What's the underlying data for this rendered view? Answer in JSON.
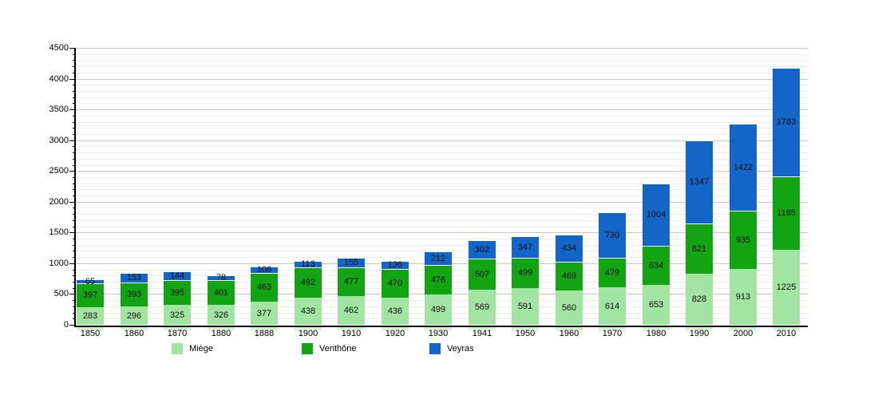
{
  "chart_data": {
    "type": "bar",
    "stacked": true,
    "title": "",
    "xlabel": "",
    "ylabel": "",
    "categories": [
      "1850",
      "1860",
      "1870",
      "1880",
      "1888",
      "1900",
      "1910",
      "1920",
      "1930",
      "1941",
      "1950",
      "1960",
      "1970",
      "1980",
      "1990",
      "2000",
      "2010"
    ],
    "series": [
      {
        "name": "Miège",
        "color": "#a2e5a2",
        "values": [
          283,
          296,
          325,
          326,
          377,
          438,
          462,
          436,
          499,
          569,
          591,
          560,
          614,
          653,
          828,
          913,
          1225
        ]
      },
      {
        "name": "Venthône",
        "color": "#12a412",
        "values": [
          397,
          393,
          395,
          401,
          463,
          492,
          477,
          470,
          476,
          507,
          499,
          469,
          479,
          634,
          821,
          935,
          1185
        ]
      },
      {
        "name": "Veyras",
        "color": "#1365c7",
        "values": [
          65,
          153,
          144,
          78,
          106,
          113,
          155,
          136,
          212,
          302,
          347,
          434,
          730,
          1004,
          1347,
          1422,
          1763
        ]
      }
    ],
    "ylim": [
      0,
      4500
    ],
    "ytick_step": 500,
    "yminor_step": 100,
    "y_tick_labels": [
      "0",
      "500",
      "1000",
      "1500",
      "2000",
      "2500",
      "3000",
      "3500",
      "4000",
      "4500"
    ],
    "grid": "horizontal",
    "legend_position": "bottom",
    "value_labels": true,
    "colors": {
      "axis": "#000000",
      "grid_minor": "#ececec",
      "grid_major": "#c4c4c4",
      "label_text": "#111111",
      "background": "#ffffff"
    }
  }
}
